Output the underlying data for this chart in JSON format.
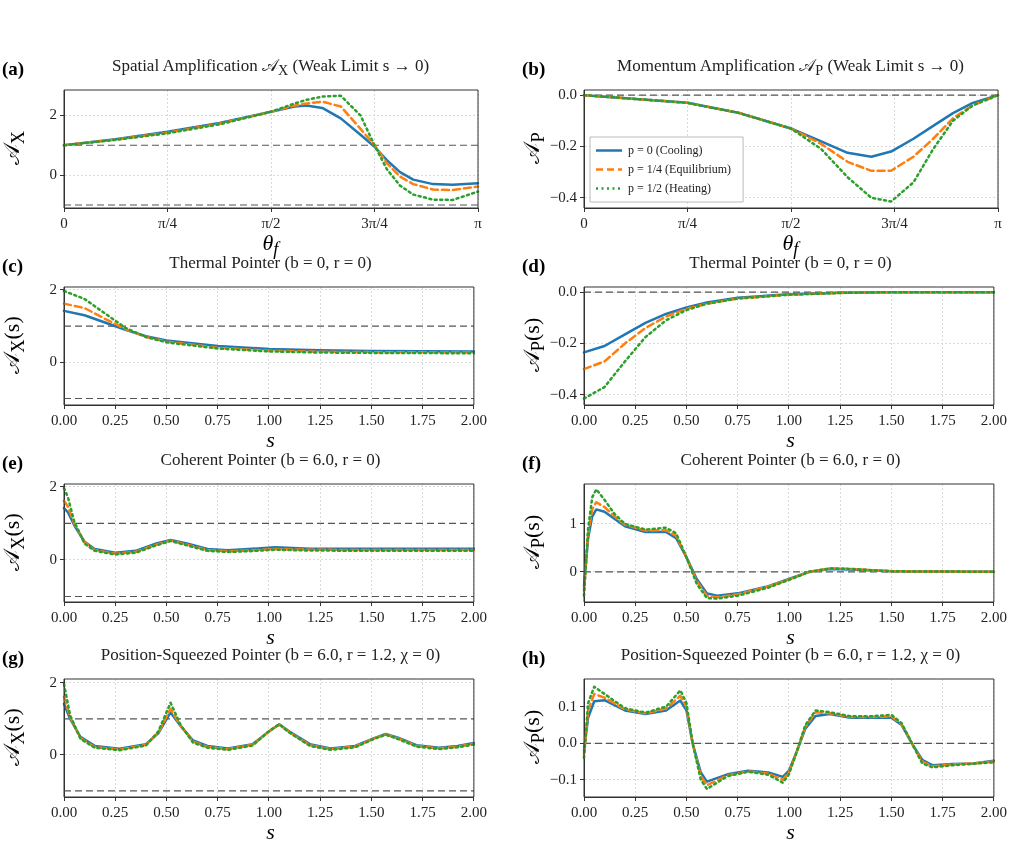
{
  "chart_data": [
    {
      "type": "line",
      "title": "Spatial Amplification 𝒜$_{X}$ (Weak Limit s → 0)",
      "xlabel": "θ$_{f}$",
      "ylabel": "𝒜$_{X}$",
      "annotations": [
        "(a)"
      ],
      "grid": true,
      "x": [
        0,
        0.39,
        0.785,
        1.18,
        1.57,
        1.75,
        1.84,
        1.96,
        2.1,
        2.25,
        2.356,
        2.45,
        2.55,
        2.65,
        2.8,
        2.95,
        3.1416
      ],
      "series": [
        {
          "color": "#1f77b4",
          "line_style": "solid",
          "values": [
            1.0,
            1.2,
            1.45,
            1.75,
            2.12,
            2.3,
            2.33,
            2.25,
            1.9,
            1.35,
            0.95,
            0.5,
            0.1,
            -0.15,
            -0.3,
            -0.32,
            -0.27
          ]
        },
        {
          "color": "#ff7f0e",
          "line_style": "dashed",
          "values": [
            1.0,
            1.19,
            1.42,
            1.72,
            2.12,
            2.33,
            2.4,
            2.46,
            2.3,
            1.55,
            1.0,
            0.4,
            -0.05,
            -0.3,
            -0.48,
            -0.5,
            -0.38
          ]
        },
        {
          "color": "#2ca02c",
          "line_style": "dotted",
          "values": [
            1.0,
            1.18,
            1.4,
            1.7,
            2.12,
            2.4,
            2.52,
            2.63,
            2.66,
            2.0,
            1.0,
            0.2,
            -0.35,
            -0.65,
            -0.82,
            -0.83,
            -0.55
          ]
        }
      ],
      "xlim": [
        0,
        3.1416
      ],
      "xticks": [
        0,
        {
          "value": 0.7854,
          "label": "π/4"
        },
        {
          "value": 1.5708,
          "label": "π/2"
        },
        {
          "value": 2.3562,
          "label": "3π/4"
        },
        {
          "value": 3.1416,
          "label": "π"
        }
      ],
      "ylim": [
        -1.1,
        2.85
      ],
      "yticks": [
        0,
        2
      ],
      "ref_lines": [
        {
          "axis": "y",
          "value": 1,
          "color": "#555555",
          "line_style": "dashed"
        },
        {
          "axis": "y",
          "value": -1,
          "color": "#555555",
          "line_style": "dashed"
        }
      ]
    },
    {
      "type": "line",
      "title": "Momentum Amplification 𝒜$_{P}$ (Weak Limit s → 0)",
      "xlabel": "θ$_{f}$",
      "ylabel": "𝒜$_{P}$",
      "annotations": [
        "(b)"
      ],
      "grid": true,
      "legend": "bottom left",
      "x": [
        0,
        0.785,
        1.18,
        1.57,
        1.8,
        2.0,
        2.18,
        2.33,
        2.5,
        2.65,
        2.8,
        2.95,
        3.1416
      ],
      "series": [
        {
          "name": "p = 0 (Cooling)",
          "color": "#1f77b4",
          "line_style": "solid",
          "values": [
            0,
            -0.03,
            -0.07,
            -0.13,
            -0.18,
            -0.225,
            -0.24,
            -0.22,
            -0.17,
            -0.12,
            -0.07,
            -0.03,
            0
          ]
        },
        {
          "name": "p = 1/4 (Equilibrium)",
          "color": "#ff7f0e",
          "line_style": "dashed",
          "values": [
            0,
            -0.03,
            -0.07,
            -0.13,
            -0.19,
            -0.26,
            -0.295,
            -0.295,
            -0.24,
            -0.17,
            -0.09,
            -0.04,
            0
          ]
        },
        {
          "name": "p = 1/2 (Heating)",
          "color": "#2ca02c",
          "line_style": "dotted",
          "values": [
            0,
            -0.03,
            -0.07,
            -0.13,
            -0.21,
            -0.32,
            -0.4,
            -0.415,
            -0.34,
            -0.21,
            -0.1,
            -0.04,
            0
          ]
        }
      ],
      "xlim": [
        0,
        3.1416
      ],
      "xticks": [
        0,
        {
          "value": 0.7854,
          "label": "π/4"
        },
        {
          "value": 1.5708,
          "label": "π/2"
        },
        {
          "value": 2.3562,
          "label": "3π/4"
        },
        {
          "value": 3.1416,
          "label": "π"
        }
      ],
      "ylim": [
        -0.44,
        0.02
      ],
      "yticks": [
        {
          "value": -0.4,
          "label": "−0.4"
        },
        {
          "value": -0.2,
          "label": "−0.2"
        },
        {
          "value": 0,
          "label": "0.0"
        }
      ],
      "ref_lines": [
        {
          "axis": "y",
          "value": 0,
          "color": "#555555",
          "line_style": "dashed"
        }
      ]
    },
    {
      "type": "line",
      "title": "Thermal Pointer (b = 0, r = 0)",
      "xlabel": "s",
      "ylabel": "𝒜$_{X}$(s)",
      "annotations": [
        "(c)"
      ],
      "grid": true,
      "x": [
        0,
        0.1,
        0.2,
        0.3,
        0.4,
        0.5,
        0.75,
        1.0,
        1.25,
        1.5,
        2.0
      ],
      "series": [
        {
          "color": "#1f77b4",
          "line_style": "solid",
          "values": [
            1.42,
            1.3,
            1.1,
            0.9,
            0.72,
            0.6,
            0.45,
            0.37,
            0.33,
            0.31,
            0.3
          ]
        },
        {
          "color": "#ff7f0e",
          "line_style": "dashed",
          "values": [
            1.62,
            1.5,
            1.2,
            0.92,
            0.7,
            0.57,
            0.4,
            0.32,
            0.29,
            0.28,
            0.27
          ]
        },
        {
          "color": "#2ca02c",
          "line_style": "dotted",
          "values": [
            1.97,
            1.75,
            1.35,
            0.95,
            0.7,
            0.55,
            0.38,
            0.3,
            0.27,
            0.26,
            0.25
          ]
        }
      ],
      "xlim": [
        0,
        2
      ],
      "xticks": [
        {
          "value": 0,
          "label": "0.00"
        },
        0.25,
        {
          "value": 0.5,
          "label": "0.50"
        },
        0.75,
        {
          "value": 1,
          "label": "1.00"
        },
        1.25,
        {
          "value": 1.5,
          "label": "1.50"
        },
        1.75,
        {
          "value": 2,
          "label": "2.00"
        }
      ],
      "ylim": [
        -1.18,
        2.08
      ],
      "yticks": [
        0,
        2
      ],
      "ref_lines": [
        {
          "axis": "y",
          "value": 1,
          "color": "#555555",
          "line_style": "dashed"
        },
        {
          "axis": "y",
          "value": -1,
          "color": "#555555",
          "line_style": "dashed"
        }
      ]
    },
    {
      "type": "line",
      "title": "Thermal Pointer (b = 0, r = 0)",
      "xlabel": "s",
      "ylabel": "𝒜$_{P}$(s)",
      "annotations": [
        "(d)"
      ],
      "grid": true,
      "x": [
        0,
        0.1,
        0.2,
        0.3,
        0.4,
        0.5,
        0.6,
        0.75,
        1.0,
        1.25,
        1.5,
        2.0
      ],
      "series": [
        {
          "color": "#1f77b4",
          "line_style": "solid",
          "values": [
            -0.235,
            -0.21,
            -0.165,
            -0.12,
            -0.085,
            -0.06,
            -0.04,
            -0.022,
            -0.008,
            -0.002,
            0,
            0
          ]
        },
        {
          "color": "#ff7f0e",
          "line_style": "dashed",
          "values": [
            -0.3,
            -0.27,
            -0.2,
            -0.14,
            -0.095,
            -0.065,
            -0.045,
            -0.025,
            -0.01,
            -0.003,
            0,
            0
          ]
        },
        {
          "color": "#2ca02c",
          "line_style": "dotted",
          "values": [
            -0.415,
            -0.37,
            -0.27,
            -0.175,
            -0.11,
            -0.07,
            -0.045,
            -0.025,
            -0.01,
            -0.003,
            0,
            0
          ]
        }
      ],
      "xlim": [
        0,
        2
      ],
      "xticks": [
        {
          "value": 0,
          "label": "0.00"
        },
        0.25,
        {
          "value": 0.5,
          "label": "0.50"
        },
        0.75,
        {
          "value": 1,
          "label": "1.00"
        },
        1.25,
        {
          "value": 1.5,
          "label": "1.50"
        },
        1.75,
        {
          "value": 2,
          "label": "2.00"
        }
      ],
      "ylim": [
        -0.44,
        0.02
      ],
      "yticks": [
        {
          "value": -0.4,
          "label": "−0.4"
        },
        {
          "value": -0.2,
          "label": "−0.2"
        },
        {
          "value": 0,
          "label": "0.0"
        }
      ],
      "ref_lines": [
        {
          "axis": "y",
          "value": 0,
          "color": "#555555",
          "line_style": "dashed"
        }
      ]
    },
    {
      "type": "line",
      "title": "Coherent Pointer (b = 6.0, r = 0)",
      "xlabel": "s",
      "ylabel": "𝒜$_{X}$(s)",
      "annotations": [
        "(e)"
      ],
      "grid": true,
      "x": [
        0,
        0.02,
        0.05,
        0.1,
        0.15,
        0.25,
        0.35,
        0.45,
        0.52,
        0.6,
        0.7,
        0.8,
        0.9,
        1.03,
        1.2,
        1.5,
        2.0
      ],
      "series": [
        {
          "color": "#1f77b4",
          "line_style": "solid",
          "values": [
            1.42,
            1.3,
            0.95,
            0.5,
            0.3,
            0.2,
            0.25,
            0.45,
            0.55,
            0.45,
            0.3,
            0.27,
            0.3,
            0.35,
            0.31,
            0.31,
            0.31
          ]
        },
        {
          "color": "#ff7f0e",
          "line_style": "dashed",
          "values": [
            1.62,
            1.45,
            1.0,
            0.48,
            0.27,
            0.17,
            0.22,
            0.42,
            0.53,
            0.42,
            0.27,
            0.24,
            0.26,
            0.3,
            0.28,
            0.27,
            0.27
          ]
        },
        {
          "color": "#2ca02c",
          "line_style": "dotted",
          "values": [
            1.97,
            1.7,
            1.05,
            0.45,
            0.25,
            0.15,
            0.2,
            0.4,
            0.52,
            0.4,
            0.25,
            0.22,
            0.24,
            0.28,
            0.26,
            0.25,
            0.25
          ]
        }
      ],
      "xlim": [
        0,
        2
      ],
      "xticks": [
        {
          "value": 0,
          "label": "0.00"
        },
        0.25,
        {
          "value": 0.5,
          "label": "0.50"
        },
        0.75,
        {
          "value": 1,
          "label": "1.00"
        },
        1.25,
        {
          "value": 1.5,
          "label": "1.50"
        },
        1.75,
        {
          "value": 2,
          "label": "2.00"
        }
      ],
      "ylim": [
        -1.15,
        2.08
      ],
      "yticks": [
        0,
        2
      ],
      "ref_lines": [
        {
          "axis": "y",
          "value": 1,
          "color": "#555555",
          "line_style": "dashed"
        },
        {
          "axis": "y",
          "value": -1,
          "color": "#555555",
          "line_style": "dashed"
        }
      ]
    },
    {
      "type": "line",
      "title": "Coherent Pointer (b = 6.0, r = 0)",
      "xlabel": "s",
      "ylabel": "𝒜$_{P}$(s)",
      "annotations": [
        "(f)"
      ],
      "grid": true,
      "x": [
        0,
        0.02,
        0.04,
        0.06,
        0.1,
        0.15,
        0.2,
        0.3,
        0.4,
        0.45,
        0.5,
        0.55,
        0.6,
        0.65,
        0.75,
        0.9,
        1.0,
        1.1,
        1.2,
        1.3,
        1.5,
        2.0
      ],
      "series": [
        {
          "color": "#1f77b4",
          "line_style": "solid",
          "values": [
            -0.3,
            0.7,
            1.15,
            1.3,
            1.25,
            1.1,
            0.95,
            0.83,
            0.83,
            0.7,
            0.3,
            -0.15,
            -0.45,
            -0.5,
            -0.45,
            -0.3,
            -0.15,
            0.0,
            0.06,
            0.05,
            0.01,
            0
          ]
        },
        {
          "color": "#ff7f0e",
          "line_style": "dashed",
          "values": [
            -0.4,
            0.8,
            1.3,
            1.45,
            1.35,
            1.15,
            0.98,
            0.86,
            0.87,
            0.75,
            0.3,
            -0.2,
            -0.5,
            -0.53,
            -0.47,
            -0.31,
            -0.16,
            0.0,
            0.07,
            0.06,
            0.01,
            0
          ]
        },
        {
          "color": "#2ca02c",
          "line_style": "dotted",
          "values": [
            -0.5,
            0.9,
            1.55,
            1.72,
            1.5,
            1.2,
            1.0,
            0.88,
            0.92,
            0.8,
            0.3,
            -0.25,
            -0.55,
            -0.56,
            -0.5,
            -0.33,
            -0.17,
            0.0,
            0.07,
            0.06,
            0.01,
            0
          ]
        }
      ],
      "xlim": [
        0,
        2
      ],
      "xticks": [
        {
          "value": 0,
          "label": "0.00"
        },
        0.25,
        {
          "value": 0.5,
          "label": "0.50"
        },
        0.75,
        {
          "value": 1,
          "label": "1.00"
        },
        1.25,
        {
          "value": 1.5,
          "label": "1.50"
        },
        1.75,
        {
          "value": 2,
          "label": "2.00"
        }
      ],
      "ylim": [
        -0.63,
        1.83
      ],
      "yticks": [
        0,
        1
      ],
      "ref_lines": [
        {
          "axis": "y",
          "value": 0,
          "color": "#555555",
          "line_style": "dashed"
        }
      ]
    },
    {
      "type": "line",
      "title": "Position-Squeezed Pointer (b = 6.0, r = 1.2, χ = 0)",
      "xlabel": "s",
      "ylabel": "𝒜$_{X}$(s)",
      "annotations": [
        "(g)"
      ],
      "grid": true,
      "x": [
        0,
        0.03,
        0.08,
        0.15,
        0.27,
        0.4,
        0.46,
        0.52,
        0.57,
        0.63,
        0.7,
        0.8,
        0.92,
        1.0,
        1.05,
        1.1,
        1.2,
        1.3,
        1.42,
        1.52,
        1.57,
        1.63,
        1.72,
        1.83,
        1.92,
        2.0
      ],
      "series": [
        {
          "color": "#1f77b4",
          "line_style": "solid",
          "values": [
            1.42,
            1.0,
            0.5,
            0.25,
            0.17,
            0.3,
            0.6,
            1.18,
            0.8,
            0.4,
            0.25,
            0.18,
            0.3,
            0.65,
            0.85,
            0.65,
            0.3,
            0.18,
            0.25,
            0.48,
            0.58,
            0.48,
            0.27,
            0.2,
            0.25,
            0.33
          ]
        },
        {
          "color": "#ff7f0e",
          "line_style": "dashed",
          "values": [
            1.62,
            1.05,
            0.47,
            0.22,
            0.15,
            0.28,
            0.62,
            1.28,
            0.8,
            0.37,
            0.22,
            0.16,
            0.28,
            0.65,
            0.84,
            0.63,
            0.27,
            0.16,
            0.23,
            0.47,
            0.57,
            0.46,
            0.25,
            0.18,
            0.23,
            0.31
          ]
        },
        {
          "color": "#2ca02c",
          "line_style": "dotted",
          "values": [
            1.97,
            1.1,
            0.45,
            0.2,
            0.13,
            0.26,
            0.65,
            1.45,
            0.82,
            0.34,
            0.2,
            0.14,
            0.26,
            0.66,
            0.85,
            0.62,
            0.25,
            0.14,
            0.21,
            0.46,
            0.56,
            0.44,
            0.23,
            0.16,
            0.21,
            0.29
          ]
        }
      ],
      "xlim": [
        0,
        2
      ],
      "xticks": [
        {
          "value": 0,
          "label": "0.00"
        },
        0.25,
        {
          "value": 0.5,
          "label": "0.50"
        },
        0.75,
        {
          "value": 1,
          "label": "1.00"
        },
        1.25,
        {
          "value": 1.5,
          "label": "1.50"
        },
        1.75,
        {
          "value": 2,
          "label": "2.00"
        }
      ],
      "ylim": [
        -1.17,
        2.11
      ],
      "yticks": [
        0,
        2
      ],
      "ref_lines": [
        {
          "axis": "y",
          "value": 1,
          "color": "#555555",
          "line_style": "dashed"
        },
        {
          "axis": "y",
          "value": -1,
          "color": "#555555",
          "line_style": "dashed"
        }
      ]
    },
    {
      "type": "line",
      "title": "Position-Squeezed Pointer (b = 6.0, r = 1.2, χ = 0)",
      "xlabel": "s",
      "ylabel": "𝒜$_{P}$(s)",
      "annotations": [
        "(h)"
      ],
      "grid": true,
      "x": [
        0,
        0.02,
        0.05,
        0.1,
        0.2,
        0.3,
        0.4,
        0.47,
        0.5,
        0.53,
        0.57,
        0.6,
        0.7,
        0.8,
        0.9,
        0.97,
        1.0,
        1.04,
        1.08,
        1.13,
        1.2,
        1.3,
        1.4,
        1.5,
        1.55,
        1.6,
        1.65,
        1.7,
        1.8,
        1.9,
        2.0
      ],
      "series": [
        {
          "color": "#1f77b4",
          "line_style": "solid",
          "values": [
            -0.02,
            0.07,
            0.115,
            0.118,
            0.09,
            0.08,
            0.09,
            0.117,
            0.09,
            0.0,
            -0.08,
            -0.105,
            -0.085,
            -0.075,
            -0.08,
            -0.092,
            -0.075,
            -0.02,
            0.04,
            0.075,
            0.08,
            0.07,
            0.07,
            0.07,
            0.05,
            0.0,
            -0.045,
            -0.06,
            -0.057,
            -0.055,
            -0.048
          ]
        },
        {
          "color": "#ff7f0e",
          "line_style": "dashed",
          "values": [
            -0.03,
            0.09,
            0.135,
            0.125,
            0.093,
            0.082,
            0.095,
            0.13,
            0.1,
            0.0,
            -0.09,
            -0.115,
            -0.088,
            -0.077,
            -0.083,
            -0.1,
            -0.08,
            -0.02,
            0.045,
            0.085,
            0.082,
            0.072,
            0.072,
            0.074,
            0.052,
            0.0,
            -0.05,
            -0.063,
            -0.058,
            -0.055,
            -0.05
          ]
        },
        {
          "color": "#2ca02c",
          "line_style": "dotted",
          "values": [
            -0.04,
            0.11,
            0.155,
            0.135,
            0.096,
            0.084,
            0.1,
            0.145,
            0.11,
            0.0,
            -0.1,
            -0.125,
            -0.09,
            -0.078,
            -0.086,
            -0.108,
            -0.085,
            -0.02,
            0.05,
            0.09,
            0.085,
            0.074,
            0.074,
            0.078,
            0.055,
            0.0,
            -0.055,
            -0.066,
            -0.06,
            -0.056,
            -0.052
          ]
        }
      ],
      "xlim": [
        0,
        2
      ],
      "xticks": [
        {
          "value": 0,
          "label": "0.00"
        },
        0.25,
        {
          "value": 0.5,
          "label": "0.50"
        },
        0.75,
        {
          "value": 1,
          "label": "1.00"
        },
        1.25,
        {
          "value": 1.5,
          "label": "1.50"
        },
        1.75,
        {
          "value": 2,
          "label": "2.00"
        }
      ],
      "ylim": [
        -0.147,
        0.176
      ],
      "yticks": [
        {
          "value": -0.1,
          "label": "−0.1"
        },
        {
          "value": 0,
          "label": "0.0"
        },
        0.1
      ],
      "ref_lines": [
        {
          "axis": "y",
          "value": 0,
          "color": "#555555",
          "line_style": "dashed"
        }
      ]
    }
  ]
}
